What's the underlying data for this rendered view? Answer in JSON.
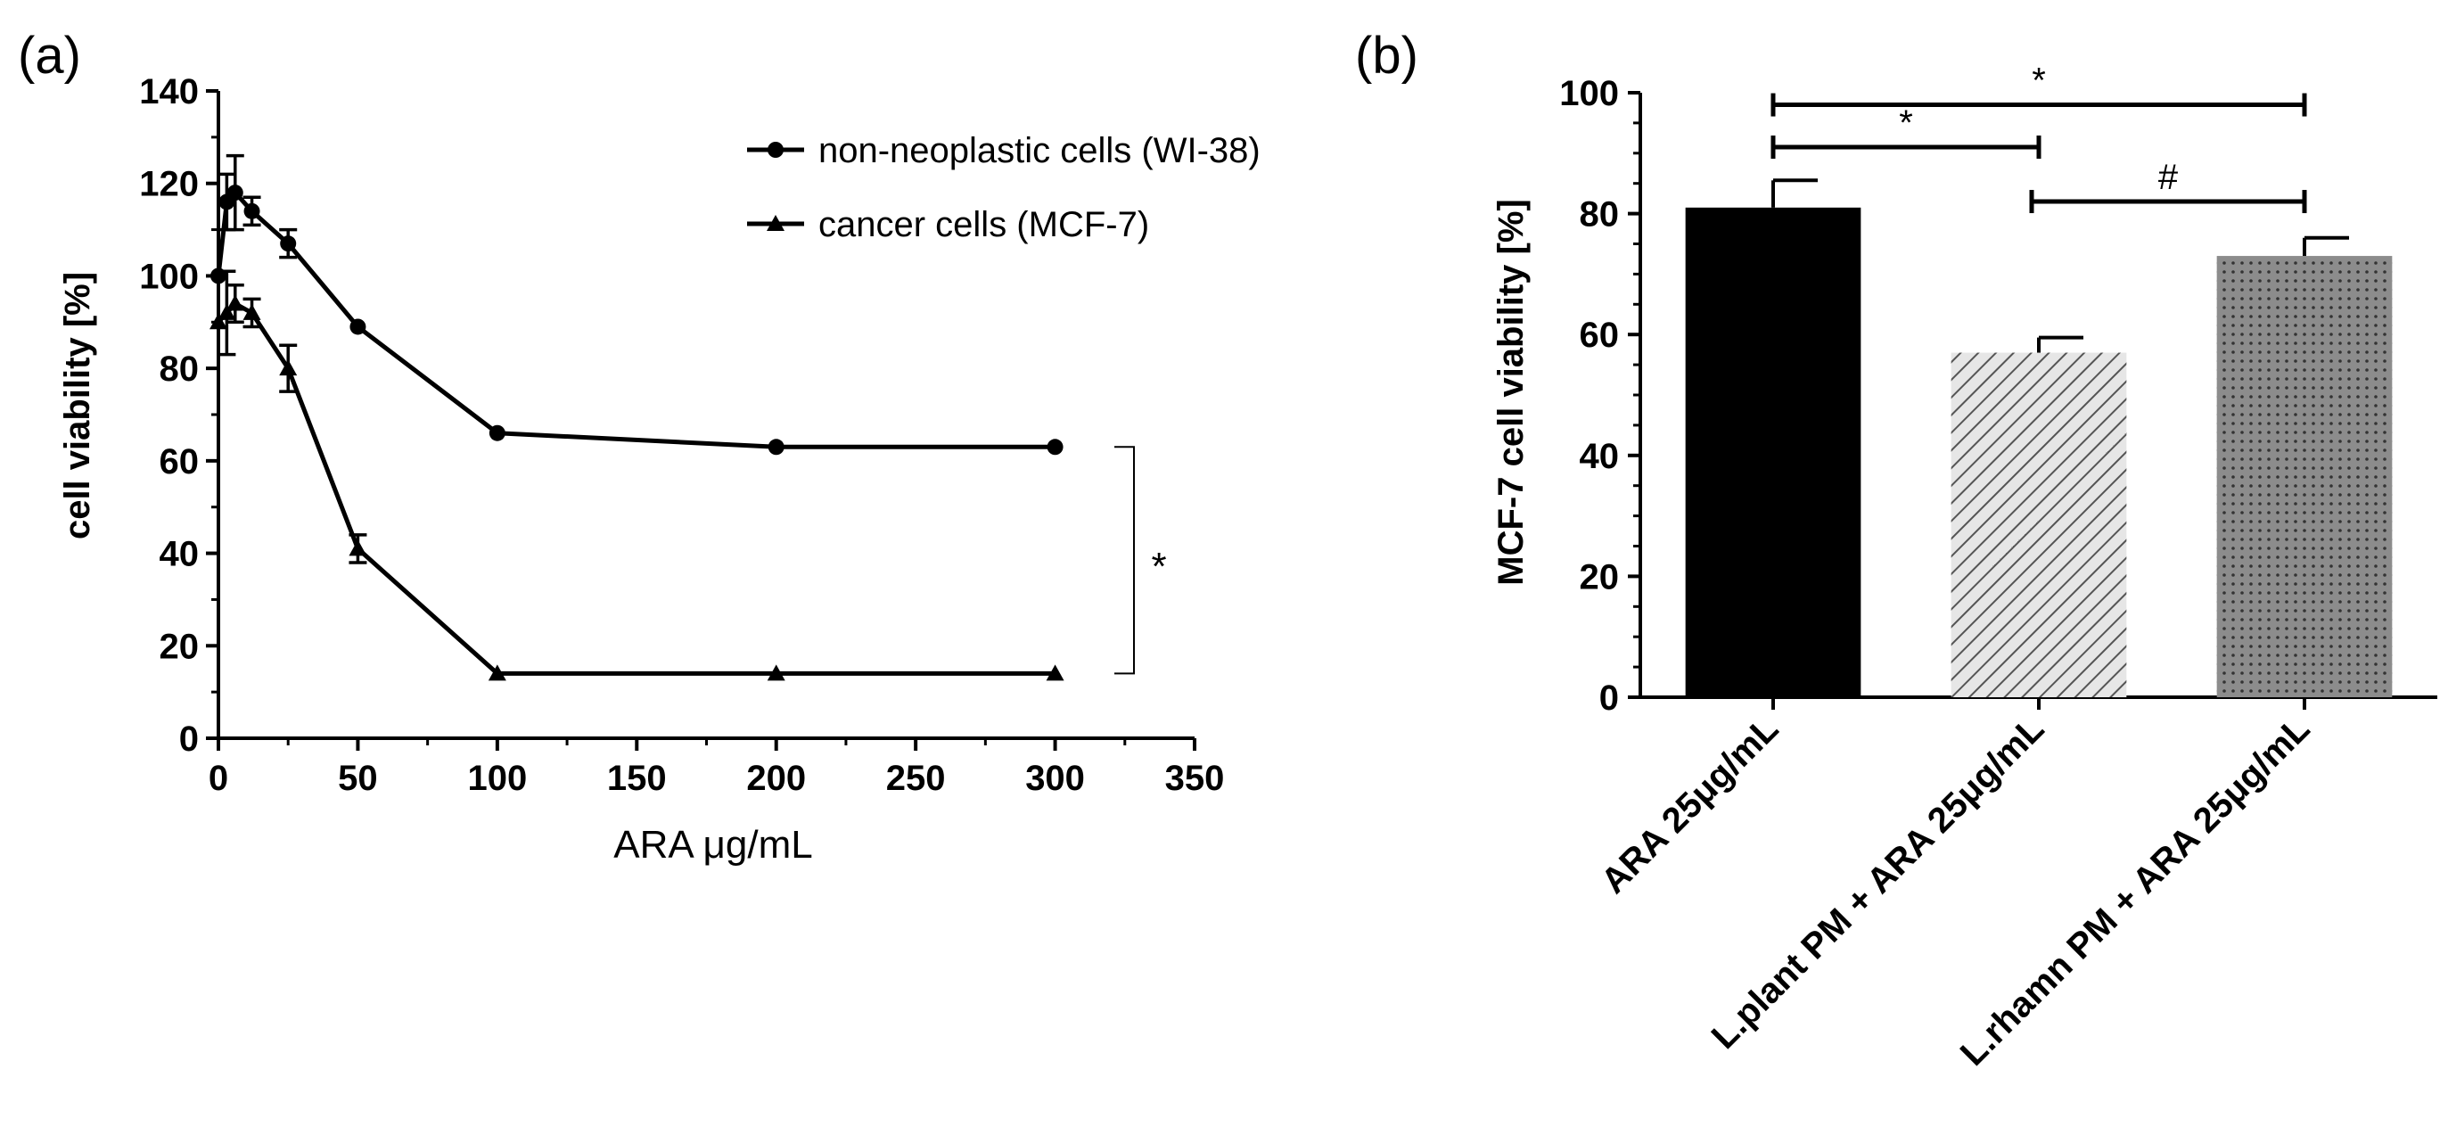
{
  "panel_labels": {
    "a": "(a)",
    "b": "(b)"
  },
  "colors": {
    "ink": "#000000",
    "bar_ara": "#000000",
    "bar_lplant_fill": "#e6e6e6",
    "bar_lplant_hatch": "#555555",
    "bar_lrhamn_fill": "#8c8c8c",
    "bar_lrhamn_dots": "#333333"
  },
  "chart_data": [
    {
      "type": "line",
      "panel": "(a)",
      "title": "",
      "xlabel": "ARA μg/mL",
      "ylabel": "cell viability [%]",
      "xlim": [
        0,
        350
      ],
      "ylim": [
        0,
        140
      ],
      "xticks": [
        0,
        50,
        100,
        150,
        200,
        250,
        300,
        350
      ],
      "yticks": [
        0,
        20,
        40,
        60,
        80,
        100,
        120,
        140
      ],
      "legend_position": "top-right",
      "series": [
        {
          "name": "non-neoplastic cells (WI-38)",
          "marker": "circle",
          "x": [
            0,
            3,
            6,
            12,
            25,
            50,
            100,
            200,
            300
          ],
          "values": [
            100,
            116,
            118,
            114,
            107,
            89,
            66,
            63,
            63
          ],
          "error": [
            0,
            6,
            8,
            3,
            3,
            0,
            0,
            0,
            0
          ]
        },
        {
          "name": "cancer cells (MCF-7)",
          "marker": "triangle",
          "x": [
            0,
            3,
            6,
            12,
            25,
            50,
            100,
            200,
            300
          ],
          "values": [
            90,
            92,
            94,
            92,
            80,
            41,
            14,
            14,
            14
          ],
          "error": [
            0,
            9,
            4,
            3,
            5,
            3,
            0,
            0,
            0
          ]
        }
      ],
      "annotations": [
        {
          "text": "*",
          "between": [
            "non-neoplastic cells (WI-38)",
            "cancer cells (MCF-7)"
          ],
          "bracket_y": [
            63,
            14
          ]
        }
      ]
    },
    {
      "type": "bar",
      "panel": "(b)",
      "title": "",
      "xlabel": "",
      "ylabel": "MCF-7 cell viability [%]",
      "ylim": [
        0,
        100
      ],
      "yticks": [
        0,
        20,
        40,
        60,
        80,
        100
      ],
      "categories": [
        "ARA 25μg/mL",
        "L.plant PM + ARA 25μg/mL",
        "L.rhamn PM + ARA 25μg/mL"
      ],
      "values": [
        81,
        57,
        73
      ],
      "error": [
        4.5,
        2.5,
        3
      ],
      "patterns": [
        "solid",
        "hatch",
        "dots"
      ],
      "significance": [
        {
          "from": 0,
          "to": 2,
          "label": "*",
          "y": 98
        },
        {
          "from": 0,
          "to": 1,
          "label": "*",
          "y": 91
        },
        {
          "from": 1,
          "to": 2,
          "label": "#",
          "y": 82
        }
      ]
    }
  ]
}
